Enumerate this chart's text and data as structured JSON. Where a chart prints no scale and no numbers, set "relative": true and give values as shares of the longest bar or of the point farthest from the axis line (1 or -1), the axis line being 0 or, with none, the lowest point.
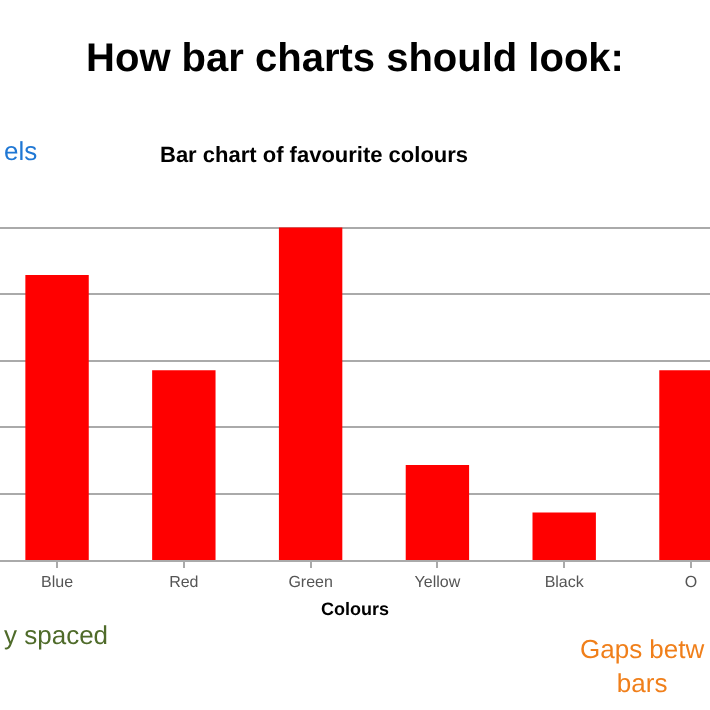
{
  "chart_data": {
    "type": "bar",
    "title": "How bar charts should look:",
    "subtitle": "Bar chart of favourite colours",
    "xlabel": "Colours",
    "categories": [
      "Blue",
      "Red",
      "Green",
      "Yellow",
      "Black",
      "O"
    ],
    "values": [
      0.857,
      0.571,
      1,
      0.286,
      0.143,
      0.571
    ],
    "color": "#ff0000",
    "relative": true,
    "grid": "y",
    "legend": false,
    "annotations": [
      "els",
      "y spaced",
      "Gaps betw\nbars"
    ]
  }
}
